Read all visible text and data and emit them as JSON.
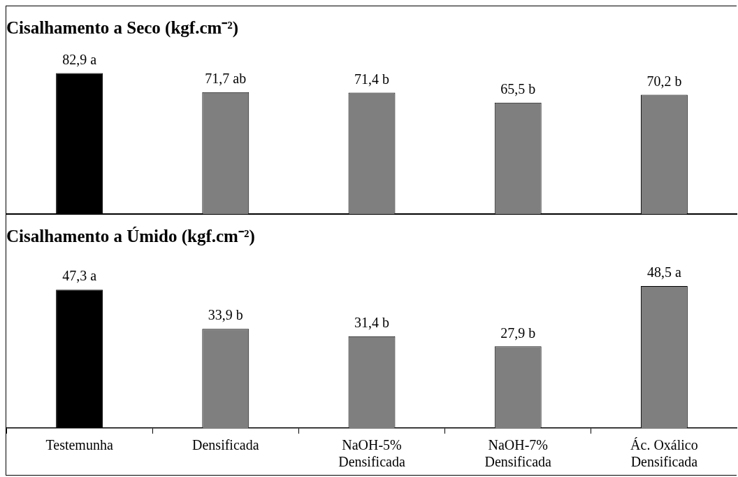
{
  "chart_data": [
    {
      "type": "bar",
      "title": "Cisalhamento a Seco (kgf.cm⁻²)",
      "categories": [
        null,
        null,
        null,
        null,
        null
      ],
      "values": [
        82.9,
        71.7,
        71.4,
        65.5,
        70.2
      ],
      "colors": [
        "#000000",
        "#7f7f7f",
        "#7f7f7f",
        "#7f7f7f",
        "#7f7f7f"
      ],
      "value_labels": [
        "82,9 a",
        "71,7 ab",
        "71,4 b",
        "65,5 b",
        "70,2 b"
      ],
      "tick_labels": false
    },
    {
      "type": "bar",
      "title": "Cisalhamento a Úmido (kgf.cm⁻²)",
      "categories": [
        "Testemunha",
        "Densificada",
        "NaOH-5% Densificada",
        "NaOH-7% Densificada",
        "Ác. Oxálico Densificada"
      ],
      "values": [
        47.3,
        33.9,
        31.4,
        27.9,
        48.5
      ],
      "colors": [
        "#000000",
        "#7f7f7f",
        "#7f7f7f",
        "#7f7f7f",
        "#7f7f7f"
      ],
      "value_labels": [
        "47,3 a",
        "33,9 b",
        "31,4 b",
        "27,9 b",
        "48,5 a"
      ],
      "tick_labels": "x"
    }
  ]
}
